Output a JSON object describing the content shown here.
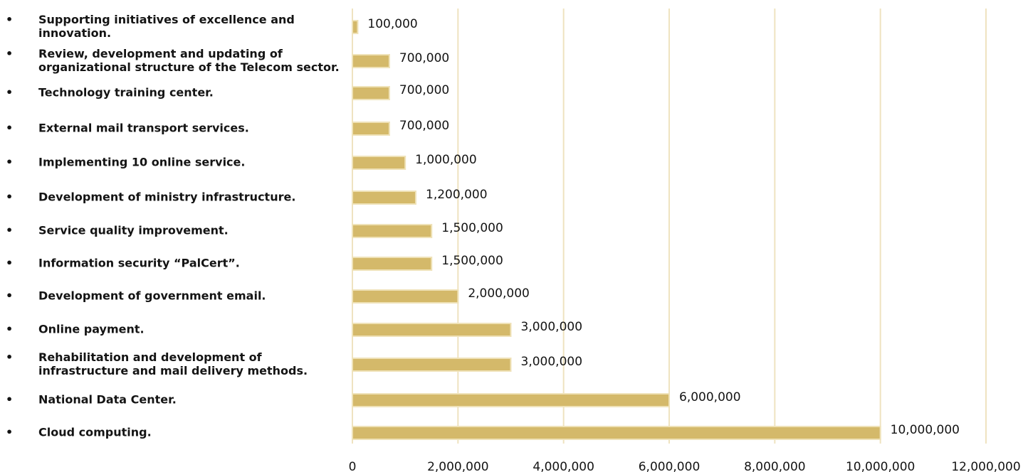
{
  "chart_data": {
    "type": "bar",
    "orientation": "horizontal",
    "bullet": "•",
    "categories": [
      "Supporting initiatives of excellence and innovation.",
      "Review, development and updating of organizational structure of the Telecom sector.",
      "Technology training center.",
      "External mail transport services.",
      "Implementing 10 online service.",
      "Development of ministry infrastructure.",
      "Service quality improvement.",
      "Information security “PalCert”.",
      "Development of government email.",
      "Online payment.",
      "Rehabilitation and development of infrastructure and mail delivery methods.",
      "National Data Center.",
      "Cloud computing."
    ],
    "category_lines": [
      [
        "Supporting initiatives of excellence and",
        "innovation."
      ],
      [
        "Review, development and updating of",
        "organizational structure of the Telecom sector."
      ],
      [
        "Technology training center."
      ],
      [
        "External mail transport services."
      ],
      [
        "Implementing 10 online service."
      ],
      [
        "Development of ministry infrastructure."
      ],
      [
        "Service quality improvement."
      ],
      [
        "Information security “PalCert”."
      ],
      [
        "Development of government email."
      ],
      [
        "Online payment."
      ],
      [
        "Rehabilitation and development of",
        "infrastructure and mail delivery methods."
      ],
      [
        "National Data Center."
      ],
      [
        "Cloud computing."
      ]
    ],
    "values": [
      100000,
      700000,
      700000,
      700000,
      1000000,
      1200000,
      1500000,
      1500000,
      2000000,
      3000000,
      3000000,
      6000000,
      10000000
    ],
    "value_labels": [
      "100,000",
      "700,000",
      "700,000",
      "700,000",
      "1,000,000",
      "1,200,000",
      "1,500,000",
      "1,500,000",
      "2,000,000",
      "3,000,000",
      "3,000,000",
      "6,000,000",
      "10,000,000"
    ],
    "xlim": [
      0,
      12000000
    ],
    "xticks": [
      0,
      2000000,
      4000000,
      6000000,
      8000000,
      10000000,
      12000000
    ],
    "xtick_labels": [
      "0",
      "2,000,000",
      "4,000,000",
      "6,000,000",
      "8,000,000",
      "10,000,000",
      "12,000,000"
    ],
    "grid": "vertical",
    "legend": "none",
    "colors": {
      "bar": "#d4b96a",
      "bar_edge": "#efe2b8",
      "grid": "#efe3c0"
    }
  }
}
